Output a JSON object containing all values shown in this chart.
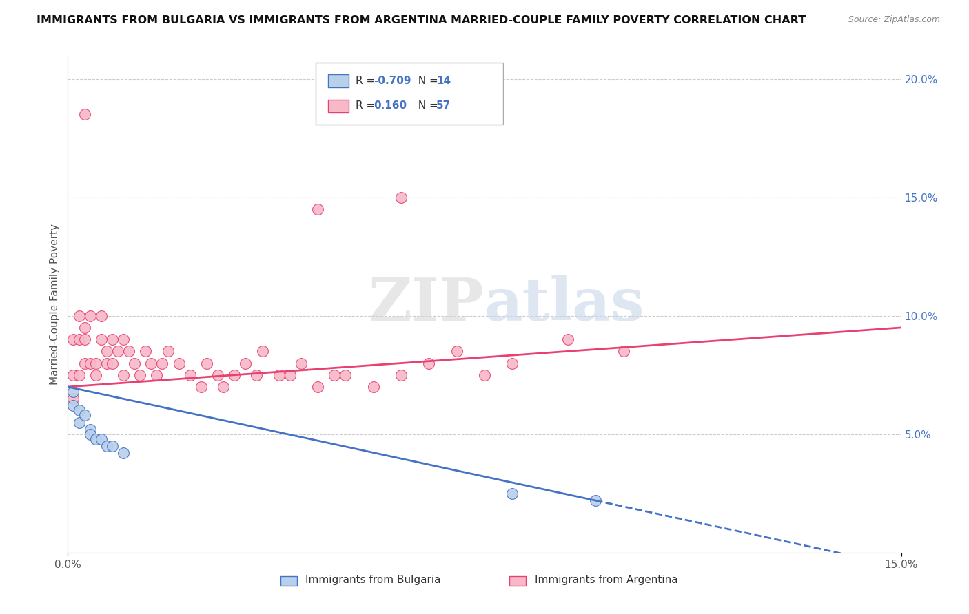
{
  "title": "IMMIGRANTS FROM BULGARIA VS IMMIGRANTS FROM ARGENTINA MARRIED-COUPLE FAMILY POVERTY CORRELATION CHART",
  "source": "Source: ZipAtlas.com",
  "ylabel": "Married-Couple Family Poverty",
  "xlim": [
    0.0,
    0.15
  ],
  "ylim": [
    0.0,
    0.21
  ],
  "legend_r_bulgaria": "-0.709",
  "legend_n_bulgaria": "14",
  "legend_r_argentina": "0.160",
  "legend_n_argentina": "57",
  "bulgaria_color": "#b8d0ea",
  "argentina_color": "#f7b8c8",
  "bulgaria_line_color": "#4472c4",
  "argentina_line_color": "#e84070",
  "bg_color": "#ffffff",
  "bulg_x": [
    0.001,
    0.001,
    0.002,
    0.002,
    0.003,
    0.004,
    0.004,
    0.005,
    0.006,
    0.007,
    0.008,
    0.01,
    0.08,
    0.095
  ],
  "bulg_y": [
    0.068,
    0.062,
    0.06,
    0.055,
    0.058,
    0.052,
    0.05,
    0.048,
    0.048,
    0.045,
    0.045,
    0.042,
    0.025,
    0.022
  ],
  "arg_x": [
    0.001,
    0.001,
    0.001,
    0.002,
    0.002,
    0.002,
    0.003,
    0.003,
    0.003,
    0.003,
    0.004,
    0.004,
    0.005,
    0.005,
    0.006,
    0.006,
    0.007,
    0.007,
    0.008,
    0.008,
    0.009,
    0.01,
    0.01,
    0.011,
    0.012,
    0.013,
    0.014,
    0.015,
    0.016,
    0.017,
    0.018,
    0.02,
    0.022,
    0.024,
    0.025,
    0.027,
    0.028,
    0.03,
    0.032,
    0.034,
    0.035,
    0.038,
    0.04,
    0.042,
    0.045,
    0.048,
    0.05,
    0.055,
    0.06,
    0.065,
    0.07,
    0.075,
    0.08,
    0.09,
    0.1,
    0.06,
    0.045
  ],
  "arg_y": [
    0.065,
    0.075,
    0.09,
    0.075,
    0.09,
    0.1,
    0.08,
    0.09,
    0.095,
    0.185,
    0.08,
    0.1,
    0.075,
    0.08,
    0.09,
    0.1,
    0.08,
    0.085,
    0.08,
    0.09,
    0.085,
    0.075,
    0.09,
    0.085,
    0.08,
    0.075,
    0.085,
    0.08,
    0.075,
    0.08,
    0.085,
    0.08,
    0.075,
    0.07,
    0.08,
    0.075,
    0.07,
    0.075,
    0.08,
    0.075,
    0.085,
    0.075,
    0.075,
    0.08,
    0.07,
    0.075,
    0.075,
    0.07,
    0.075,
    0.08,
    0.085,
    0.075,
    0.08,
    0.09,
    0.085,
    0.15,
    0.145
  ]
}
